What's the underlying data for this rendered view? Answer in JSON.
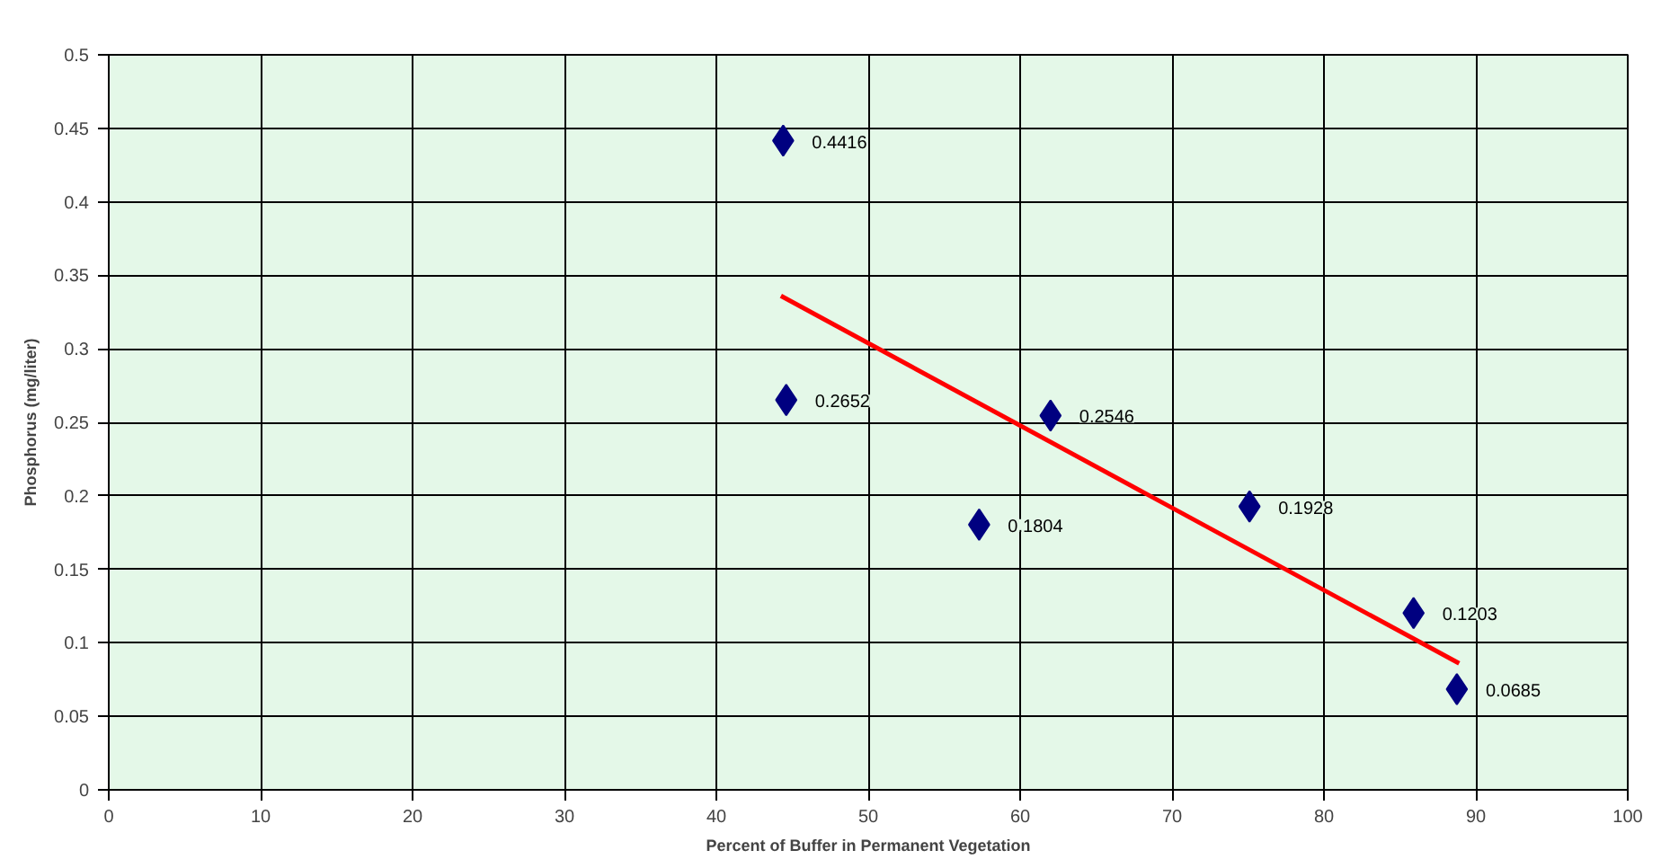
{
  "chart_data": {
    "type": "scatter",
    "xlabel": "Percent of Buffer in Permanent Vegetation",
    "ylabel": "Phosphorus (mg/liter)",
    "xlim": [
      0,
      100
    ],
    "xticks": [
      0,
      10,
      20,
      30,
      40,
      50,
      60,
      70,
      80,
      90,
      100
    ],
    "ylim": [
      0,
      0.5
    ],
    "yticks": [
      0,
      0.05,
      0.1,
      0.15,
      0.2,
      0.25,
      0.3,
      0.35,
      0.4,
      0.45,
      0.5
    ],
    "grid": true,
    "marker": "diamond",
    "series": [
      {
        "color": "#000080",
        "x": [
          44.4,
          44.6,
          57.3,
          62.0,
          75.1,
          85.9,
          88.75
        ],
        "values": [
          0.4416,
          0.2652,
          0.1804,
          0.2546,
          0.1928,
          0.1203,
          0.0685
        ],
        "value_labels": [
          "0.4416",
          "0.2652",
          "0.1804",
          "0.2546",
          "0.1928",
          "0.1203",
          "0.0685"
        ]
      },
      {
        "type": "line",
        "marker": "none",
        "color": "#ff0000",
        "x": [
          44.25,
          88.9
        ],
        "values": [
          0.336,
          0.086
        ]
      }
    ]
  }
}
